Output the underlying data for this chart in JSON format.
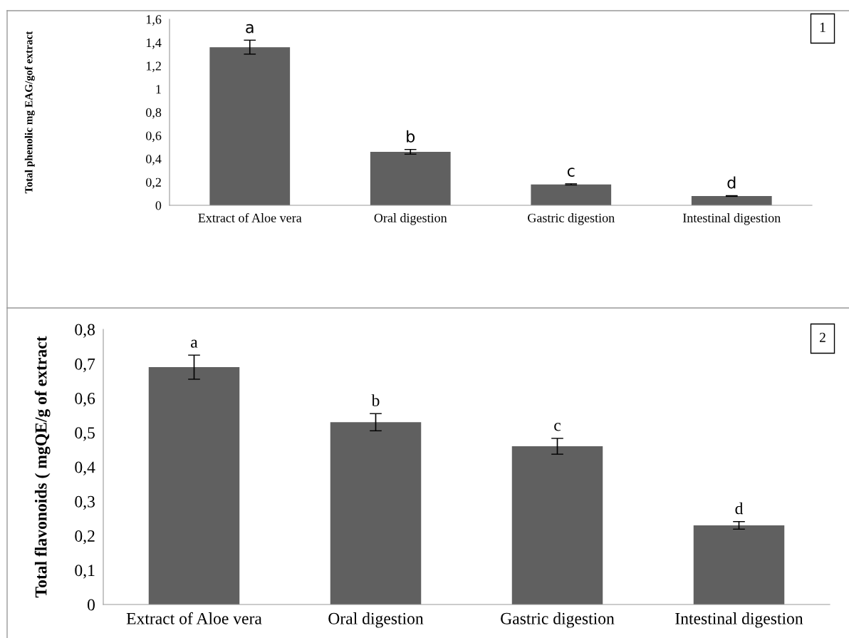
{
  "chart_data": [
    {
      "type": "bar",
      "ylabel": "Total phenolic mg EAG/gof extract",
      "categories": [
        "Extract of Aloe vera",
        "Oral digestion",
        "Gastric digestion",
        "Intestinal digestion"
      ],
      "values": [
        1.36,
        0.46,
        0.18,
        0.08
      ],
      "errors": [
        0.06,
        0.02,
        0.005,
        0.003
      ],
      "color": "#606060",
      "ylim": [
        0,
        1.6
      ],
      "yticks": [
        {
          "value": 0,
          "label": "0"
        },
        {
          "value": 0.2,
          "label": "0,2"
        },
        {
          "value": 0.4,
          "label": "0,4"
        },
        {
          "value": 0.6,
          "label": "0,6"
        },
        {
          "value": 0.8,
          "label": "0,8"
        },
        {
          "value": 1,
          "label": "1"
        },
        {
          "value": 1.2,
          "label": "1,2"
        },
        {
          "value": 1.4,
          "label": "1,4"
        },
        {
          "value": 1.6,
          "label": "1,6"
        }
      ],
      "grid": false,
      "legend": false,
      "annotations": [
        {
          "text": "a",
          "x": "Extract of Aloe vera",
          "y": 1.42
        },
        {
          "text": "b",
          "x": "Oral digestion",
          "y": 0.48
        },
        {
          "text": "c",
          "x": "Gastric digestion",
          "y": 0.185
        },
        {
          "text": "d",
          "x": "Intestinal digestion",
          "y": 0.083
        },
        "1"
      ]
    },
    {
      "type": "bar",
      "ylabel": "Total flavonoids ( mgQE/g of extract",
      "categories": [
        "Extract of Aloe vera",
        "Oral digestion",
        "Gastric digestion",
        "Intestinal digestion"
      ],
      "values": [
        0.69,
        0.53,
        0.46,
        0.23
      ],
      "errors": [
        0.035,
        0.025,
        0.023,
        0.011
      ],
      "color": "#606060",
      "ylim": [
        0,
        0.8
      ],
      "yticks": [
        {
          "value": 0,
          "label": "0"
        },
        {
          "value": 0.1,
          "label": "0,1"
        },
        {
          "value": 0.2,
          "label": "0,2"
        },
        {
          "value": 0.3,
          "label": "0,3"
        },
        {
          "value": 0.4,
          "label": "0,4"
        },
        {
          "value": 0.5,
          "label": "0,5"
        },
        {
          "value": 0.6,
          "label": "0,6"
        },
        {
          "value": 0.7,
          "label": "0,7"
        },
        {
          "value": 0.8,
          "label": "0,8"
        }
      ],
      "grid": false,
      "legend": false,
      "annotations": [
        {
          "text": "a",
          "x": "Extract of Aloe vera",
          "y": 0.725
        },
        {
          "text": "b",
          "x": "Oral digestion",
          "y": 0.555
        },
        {
          "text": "c",
          "x": "Gastric digestion",
          "y": 0.483
        },
        {
          "text": "d",
          "x": "Intestinal digestion",
          "y": 0.241
        },
        "2"
      ]
    }
  ]
}
